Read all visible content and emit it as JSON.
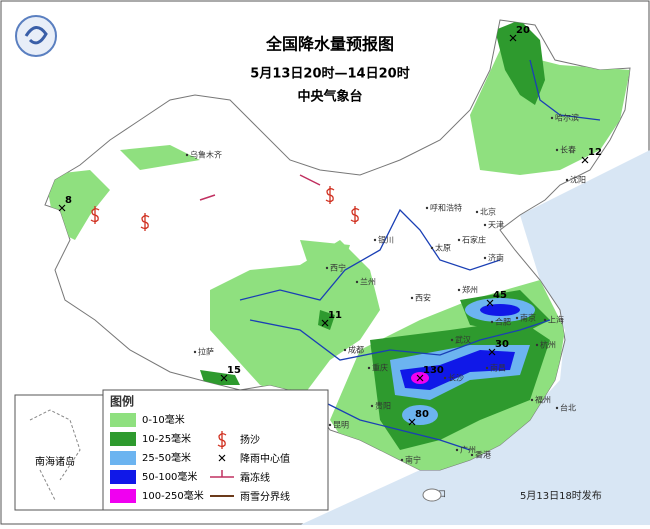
{
  "header": {
    "title": "全国降水量预报图",
    "period": "5月13日20时—14日20时",
    "issuer": "中央气象台"
  },
  "legend": {
    "title": "图例",
    "items": [
      {
        "label": "0-10毫米",
        "color": "#8fe07f"
      },
      {
        "label": "10-25毫米",
        "color": "#2e9a2e"
      },
      {
        "label": "25-50毫米",
        "color": "#6cb4f0"
      },
      {
        "label": "50-100毫米",
        "color": "#1018e8"
      },
      {
        "label": "100-250毫米",
        "color": "#f000f0"
      }
    ],
    "symbols": [
      {
        "label": "扬沙"
      },
      {
        "label": "降雨中心值"
      },
      {
        "label": "霜冻线"
      },
      {
        "label": "雨雪分界线"
      }
    ]
  },
  "centers": [
    20,
    12,
    8,
    45,
    30,
    130,
    80,
    11,
    15
  ],
  "cities": [
    "乌鲁木齐",
    "哈尔滨",
    "长春",
    "沈阳",
    "呼和浩特",
    "北京",
    "天津",
    "石家庄",
    "太原",
    "济南",
    "银川",
    "西宁",
    "兰州",
    "西安",
    "郑州",
    "合肥",
    "南京",
    "上海",
    "杭州",
    "武汉",
    "长沙",
    "南昌",
    "福州",
    "台北",
    "成都",
    "重庆",
    "贵阳",
    "昆明",
    "南宁",
    "广州",
    "香港",
    "拉萨",
    "海口"
  ],
  "inset": {
    "label": "南海诸岛"
  },
  "footer": "5月13日18时发布"
}
